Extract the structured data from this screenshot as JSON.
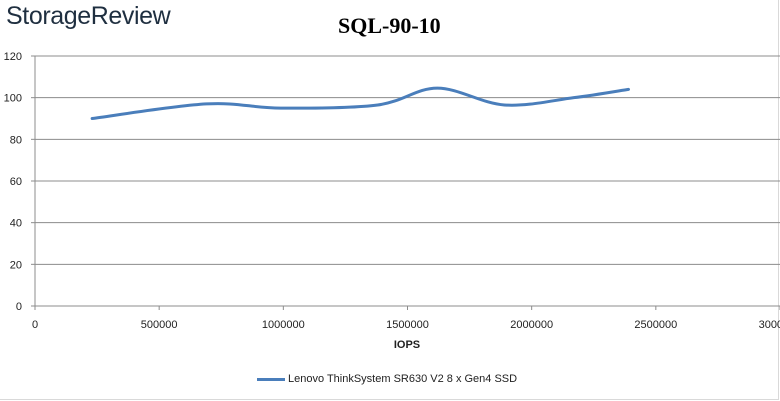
{
  "brand": {
    "logo_text": "StorageReview"
  },
  "chart_data": {
    "type": "line",
    "title": "SQL-90-10",
    "xlabel": "IOPS",
    "ylabel": "",
    "xlim": [
      0,
      3000000
    ],
    "ylim": [
      0,
      120
    ],
    "x_ticks": [
      0,
      500000,
      1000000,
      1500000,
      2000000,
      2500000,
      3000000
    ],
    "x_tick_labels": [
      "0",
      "500000",
      "1000000",
      "1500000",
      "2000000",
      "2500000",
      "3000000"
    ],
    "y_ticks": [
      0,
      20,
      40,
      60,
      80,
      100,
      120
    ],
    "y_tick_labels": [
      "0",
      "20",
      "40",
      "60",
      "80",
      "100",
      "120"
    ],
    "grid": true,
    "legend_position": "bottom",
    "series": [
      {
        "name": "Lenovo ThinkSystem SR630 V2 8 x Gen4 SSD",
        "color": "#4a7ebb",
        "x": [
          230000,
          690000,
          990000,
          1380000,
          1620000,
          1890000,
          2170000,
          2390000
        ],
        "y": [
          90,
          97,
          95,
          96.5,
          104.6,
          96.5,
          100,
          104
        ]
      }
    ]
  }
}
